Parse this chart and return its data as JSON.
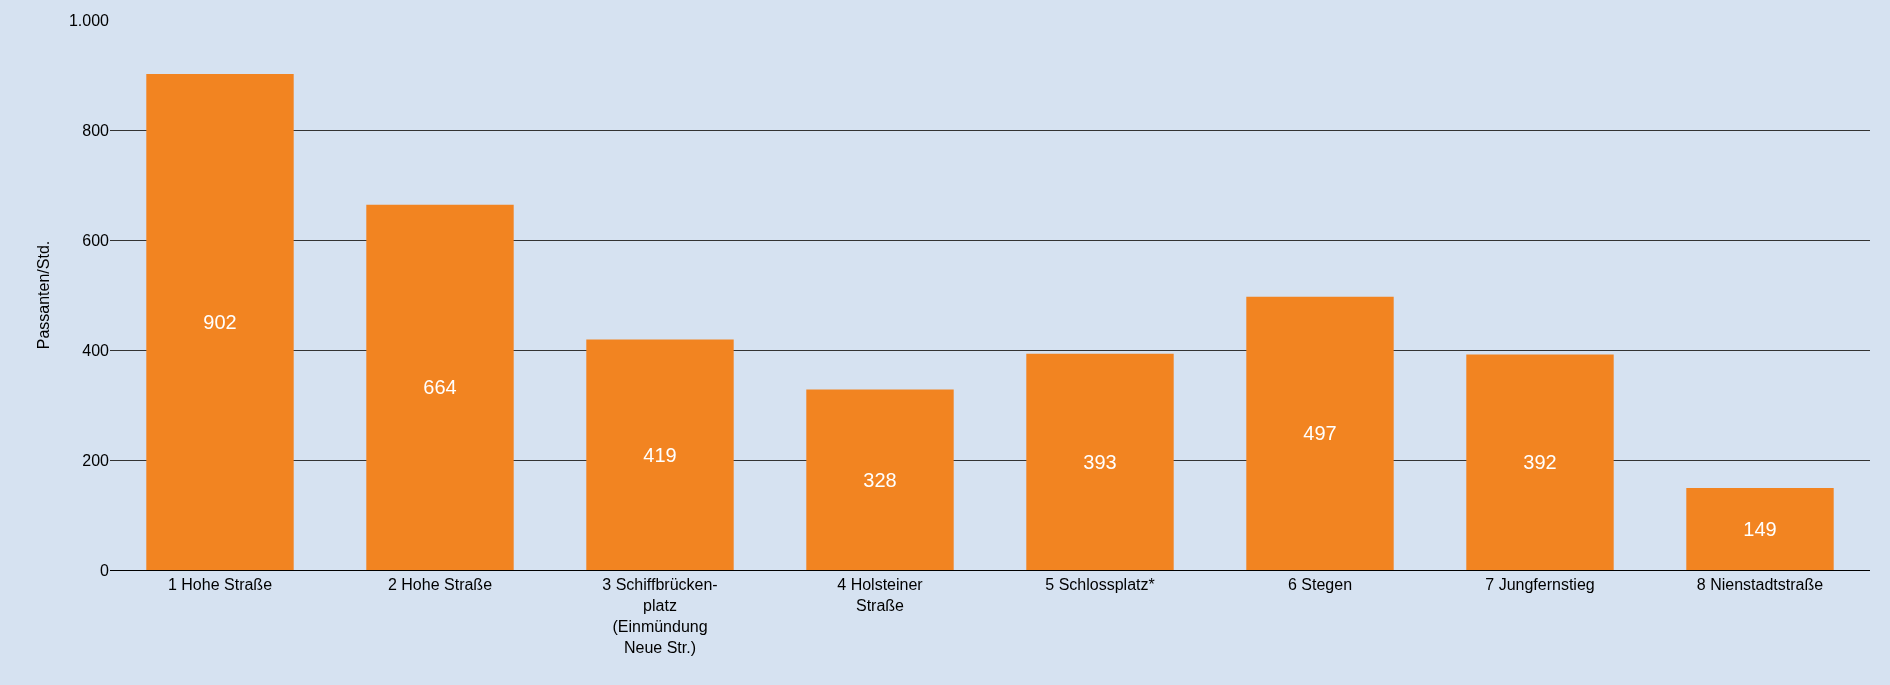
{
  "chart_data": {
    "type": "bar",
    "ylabel": "Passanten/Std.",
    "categories": [
      "1 Hohe Straße",
      "2 Hohe Straße",
      "3 Schiffbrücken-\nplatz\n(Einmündung\nNeue Str.)",
      "4 Holsteiner\nStraße",
      "5 Schlossplatz*",
      "6 Stegen",
      "7 Jungfernstieg",
      "8 Nienstadtstraße"
    ],
    "values": [
      902,
      664,
      419,
      328,
      393,
      497,
      392,
      149
    ],
    "color": "#f28421",
    "ylim": [
      0,
      1000
    ],
    "yticks": [
      0,
      200,
      400,
      600,
      800,
      {
        "value": 1000,
        "label": "1.000"
      }
    ],
    "grid": "y",
    "data_labels": true
  }
}
